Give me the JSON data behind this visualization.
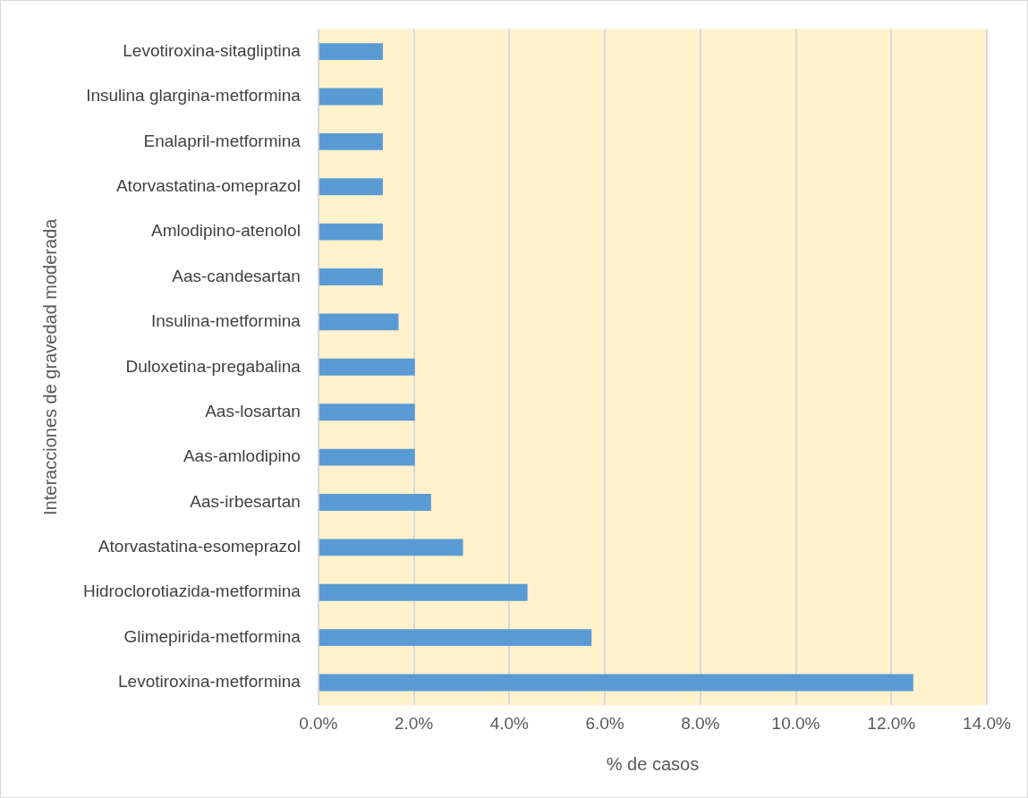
{
  "chart_data": {
    "type": "bar",
    "orientation": "horizontal",
    "xlabel": "% de casos",
    "ylabel": "Interacciones de gravedad moderada",
    "categories": [
      "Levotiroxina-sitagliptina",
      "Insulina glargina-metformina",
      "Enalapril-metformina",
      "Atorvastatina-omeprazol",
      "Amlodipino-atenolol",
      "Aas-candesartan",
      "Insulina-metformina",
      "Duloxetina-pregabalina",
      "Aas-losartan",
      "Aas-amlodipino",
      "Aas-irbesartan",
      "Atorvastatina-esomeprazol",
      "Hidroclorotiazida-metformina",
      "Glimepirida-metformina",
      "Levotiroxina-metformina"
    ],
    "values": [
      1.35,
      1.35,
      1.35,
      1.35,
      1.35,
      1.35,
      1.68,
      2.02,
      2.02,
      2.02,
      2.36,
      3.03,
      4.38,
      5.72,
      12.46
    ],
    "color": "#5b9bd5",
    "xlim": [
      0,
      14
    ],
    "xticks": [
      {
        "value": 0,
        "label": "0.0%"
      },
      {
        "value": 2,
        "label": "2.0%"
      },
      {
        "value": 4,
        "label": "4.0%"
      },
      {
        "value": 6,
        "label": "6.0%"
      },
      {
        "value": 8,
        "label": "8.0%"
      },
      {
        "value": 10,
        "label": "10.0%"
      },
      {
        "value": 12,
        "label": "12.0%"
      },
      {
        "value": 14,
        "label": "14.0%"
      }
    ],
    "grid": "x",
    "legend": false
  }
}
